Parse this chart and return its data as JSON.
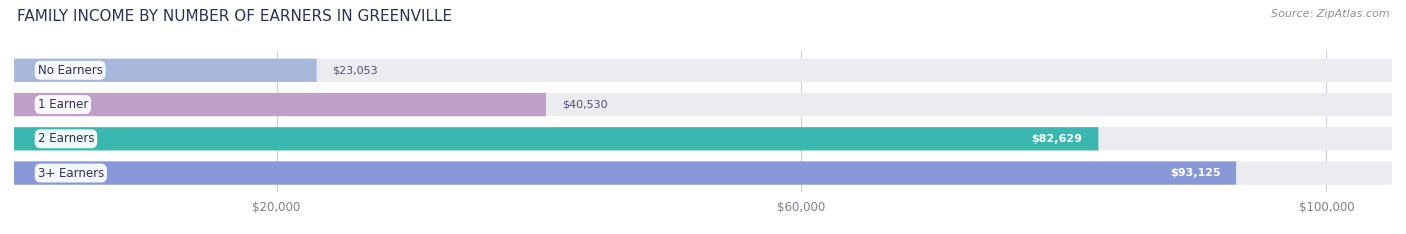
{
  "title": "FAMILY INCOME BY NUMBER OF EARNERS IN GREENVILLE",
  "source": "Source: ZipAtlas.com",
  "categories": [
    "No Earners",
    "1 Earner",
    "2 Earners",
    "3+ Earners"
  ],
  "values": [
    23053,
    40530,
    82629,
    93125
  ],
  "bar_colors": [
    "#a8b8dc",
    "#c0a0c8",
    "#3ab8b0",
    "#8898d8"
  ],
  "value_labels": [
    "$23,053",
    "$40,530",
    "$82,629",
    "$93,125"
  ],
  "xmax": 105000,
  "xmin": 0,
  "xticks": [
    20000,
    60000,
    100000
  ],
  "xtick_labels": [
    "$20,000",
    "$60,000",
    "$100,000"
  ],
  "background_color": "#ffffff",
  "bar_bg_color": "#ebebf0",
  "title_fontsize": 11,
  "source_fontsize": 8,
  "bar_label_fontsize": 8.5,
  "value_label_fontsize": 8,
  "tick_fontsize": 8.5,
  "figsize": [
    14.06,
    2.34
  ],
  "dpi": 100,
  "inside_threshold": 55000
}
